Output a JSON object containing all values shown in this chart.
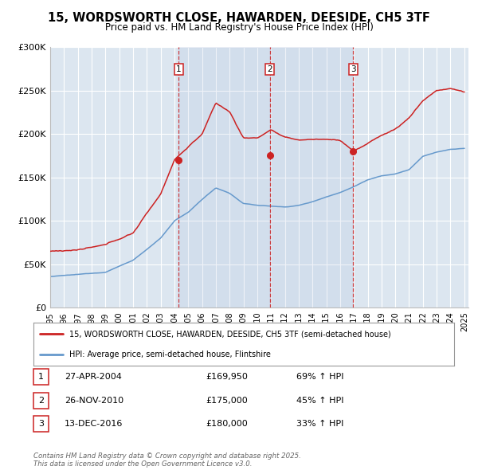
{
  "title": "15, WORDSWORTH CLOSE, HAWARDEN, DEESIDE, CH5 3TF",
  "subtitle": "Price paid vs. HM Land Registry's House Price Index (HPI)",
  "background_color": "#ffffff",
  "plot_bg_color": "#dce6f0",
  "grid_color": "#ffffff",
  "ylim": [
    0,
    300000
  ],
  "yticks": [
    0,
    50000,
    100000,
    150000,
    200000,
    250000,
    300000
  ],
  "ytick_labels": [
    "£0",
    "£50K",
    "£100K",
    "£150K",
    "£200K",
    "£250K",
    "£300K"
  ],
  "year_start": 1995,
  "year_end": 2025,
  "hpi_color": "#6699cc",
  "price_color": "#cc2222",
  "sale_marker_color": "#cc2222",
  "sale_dates": [
    2004.32,
    2010.91,
    2016.95
  ],
  "sale_prices": [
    169950,
    175000,
    180000
  ],
  "sale_labels": [
    "1",
    "2",
    "3"
  ],
  "legend_label_price": "15, WORDSWORTH CLOSE, HAWARDEN, DEESIDE, CH5 3TF (semi-detached house)",
  "legend_label_hpi": "HPI: Average price, semi-detached house, Flintshire",
  "table_rows": [
    [
      "1",
      "27-APR-2004",
      "£169,950",
      "69% ↑ HPI"
    ],
    [
      "2",
      "26-NOV-2010",
      "£175,000",
      "45% ↑ HPI"
    ],
    [
      "3",
      "13-DEC-2016",
      "£180,000",
      "33% ↑ HPI"
    ]
  ],
  "footer": "Contains HM Land Registry data © Crown copyright and database right 2025.\nThis data is licensed under the Open Government Licence v3.0.",
  "dashed_line_color": "#cc2222",
  "hpi_key_years": [
    1995,
    1997,
    1999,
    2001,
    2003,
    2004,
    2005,
    2006,
    2007,
    2008,
    2009,
    2010,
    2011,
    2012,
    2013,
    2014,
    2015,
    2016,
    2017,
    2018,
    2019,
    2020,
    2021,
    2022,
    2023,
    2024,
    2025
  ],
  "hpi_key_vals": [
    36000,
    38000,
    41000,
    55000,
    80000,
    100000,
    110000,
    125000,
    138000,
    132000,
    120000,
    118000,
    117000,
    116000,
    118000,
    122000,
    128000,
    133000,
    140000,
    148000,
    153000,
    155000,
    160000,
    175000,
    180000,
    183000,
    184000
  ],
  "price_key_years": [
    1995,
    1997,
    1999,
    2001,
    2003,
    2004,
    2005,
    2006,
    2007,
    2008,
    2009,
    2010,
    2011,
    2012,
    2013,
    2014,
    2015,
    2016,
    2017,
    2018,
    2019,
    2020,
    2021,
    2022,
    2023,
    2024,
    2025
  ],
  "price_key_vals": [
    65000,
    67000,
    71000,
    85000,
    130000,
    170000,
    185000,
    200000,
    235000,
    225000,
    195000,
    195000,
    205000,
    195000,
    192000,
    193000,
    193000,
    192000,
    180000,
    188000,
    198000,
    205000,
    218000,
    238000,
    250000,
    252000,
    248000
  ]
}
